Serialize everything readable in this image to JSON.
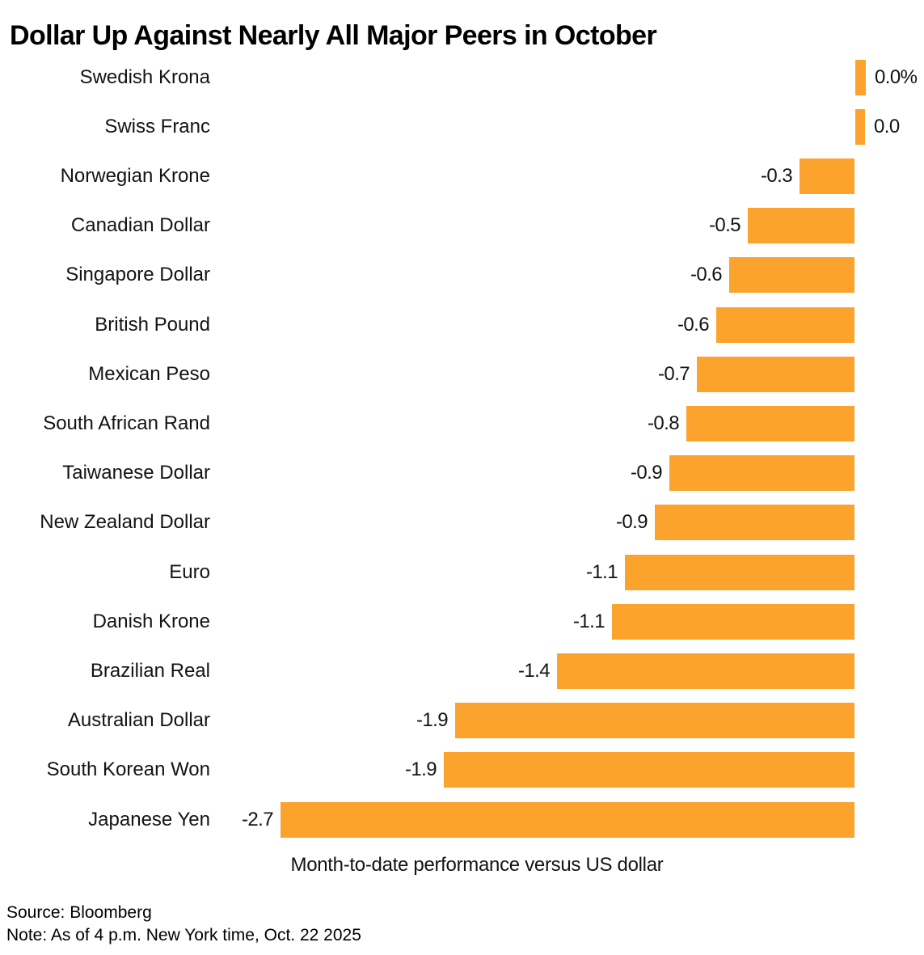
{
  "title": "Dollar Up Against Nearly All Major Peers in October",
  "source": "Source: Bloomberg",
  "note": "Note: As of 4 p.m. New York time, Oct. 22 2025",
  "colors": {
    "bar": "#FCA32E",
    "title": "#000000",
    "text": "#131313"
  },
  "chart_data": {
    "type": "bar",
    "orientation": "horizontal",
    "title": "Dollar Up Against Nearly All Major Peers in October",
    "xlabel": "Month-to-date performance versus US dollar",
    "xlim": [
      -2.8,
      0.2
    ],
    "grid": false,
    "legend": false,
    "categories": [
      "Swedish Krona",
      "Swiss Franc",
      "Norwegian Krone",
      "Canadian Dollar",
      "Singapore Dollar",
      "British Pound",
      "Mexican Peso",
      "South African Rand",
      "Taiwanese Dollar",
      "New Zealand Dollar",
      "Euro",
      "Danish Krone",
      "Brazilian Real",
      "Australian Dollar",
      "South Korean Won",
      "Japanese Yen"
    ],
    "values": [
      0.0,
      0.0,
      -0.3,
      -0.5,
      -0.6,
      -0.6,
      -0.7,
      -0.8,
      -0.9,
      -0.9,
      -1.1,
      -1.1,
      -1.4,
      -1.9,
      -1.9,
      -2.7
    ],
    "value_labels": [
      "0.0%",
      "0.0",
      "-0.3",
      "-0.5",
      "-0.6",
      "-0.6",
      "-0.7",
      "-0.8",
      "-0.9",
      "-0.9",
      "-1.1",
      "-1.1",
      "-1.4",
      "-1.9",
      "-1.9",
      "-2.7"
    ],
    "values_est": [
      0.05,
      0.045,
      -0.26,
      -0.5,
      -0.59,
      -0.65,
      -0.74,
      -0.79,
      -0.87,
      -0.94,
      -1.08,
      -1.14,
      -1.4,
      -1.88,
      -1.93,
      -2.7
    ]
  }
}
